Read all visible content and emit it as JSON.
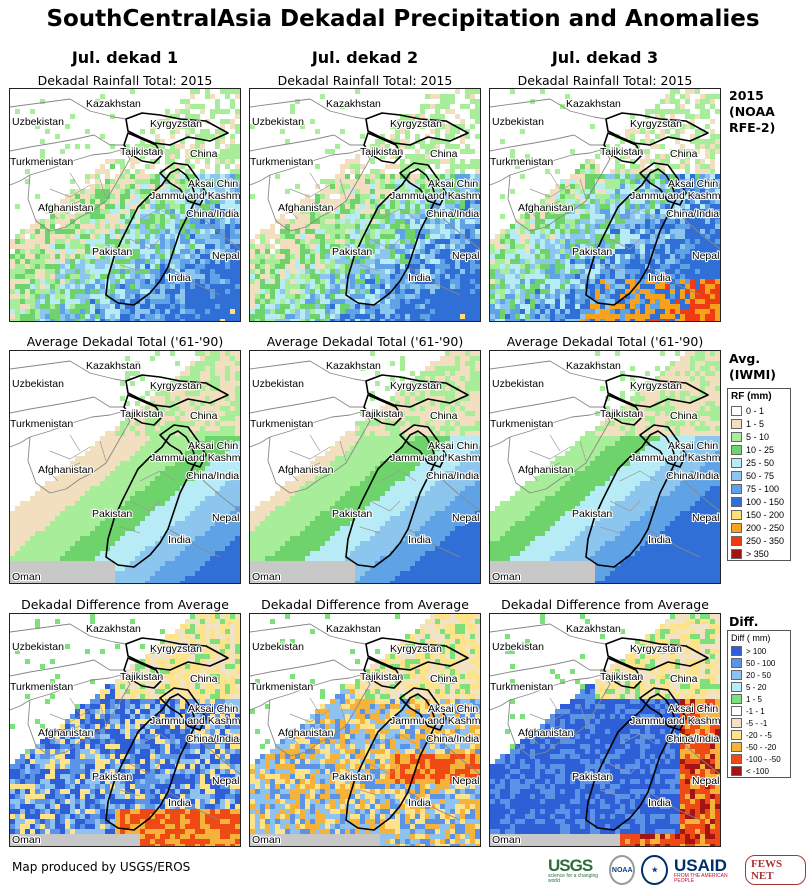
{
  "title": "SouthCentralAsia Dekadal Precipitation and Anomalies",
  "columns": [
    "Jul. dekad 1",
    "Jul. dekad 2",
    "Jul. dekad 3"
  ],
  "rows": [
    {
      "panel_title": "Dekadal Rainfall Total: 2015",
      "side_label": [
        "2015",
        "(NOAA",
        "RFE-2)"
      ],
      "kind": "total"
    },
    {
      "panel_title": "Average Dekadal Total ('61-'90)",
      "side_label": [
        "Avg.",
        "(IWMI)"
      ],
      "kind": "avg"
    },
    {
      "panel_title": "Dekadal Difference from Average",
      "side_label": [
        "Diff."
      ],
      "kind": "diff"
    }
  ],
  "map_labels": {
    "kazakhstan": "Kazakhstan",
    "uzbekistan": "Uzbekistan",
    "kyrgyzstan": "Kyrgyzstan",
    "tajikistan": "Tajikistan",
    "china": "China",
    "turkmenistan": "Turkmenistan",
    "aksai_chin": "Aksai Chin",
    "jammu_kashmir": "Jammu and Kashmir",
    "afghanistan": "Afghanistan",
    "china_india": "China/India",
    "pakistan": "Pakistan",
    "nepal": "Nepal",
    "india": "India",
    "oman": "Oman"
  },
  "rf_legend": {
    "header": "RF (mm)",
    "items": [
      {
        "label": "0 - 1",
        "color": "#ffffff"
      },
      {
        "label": "1 - 5",
        "color": "#f1dfc0"
      },
      {
        "label": "5 - 10",
        "color": "#a8ee9a"
      },
      {
        "label": "10 - 25",
        "color": "#6ed36a"
      },
      {
        "label": "25 - 50",
        "color": "#b7ecf7"
      },
      {
        "label": "50 - 75",
        "color": "#8cc6ee"
      },
      {
        "label": "75 - 100",
        "color": "#5fa2e6"
      },
      {
        "label": "100 - 150",
        "color": "#2f6fd6"
      },
      {
        "label": "150 - 200",
        "color": "#fde07b"
      },
      {
        "label": "200 - 250",
        "color": "#f7a21c"
      },
      {
        "label": "250 - 350",
        "color": "#ef3a12"
      },
      {
        "label": "> 350",
        "color": "#a31515"
      }
    ]
  },
  "diff_legend": {
    "header": "Diff ( mm)",
    "items": [
      {
        "label": "> 100",
        "color": "#2f5fd6"
      },
      {
        "label": "50 - 100",
        "color": "#5b93e6"
      },
      {
        "label": "20 - 50",
        "color": "#8ec2f0"
      },
      {
        "label": "5 - 20",
        "color": "#b8ecf6"
      },
      {
        "label": "1 - 5",
        "color": "#7ee07a"
      },
      {
        "label": "-1 - 1",
        "color": "#ffffff"
      },
      {
        "label": "-5 - -1",
        "color": "#f3e3c6"
      },
      {
        "label": "-20 - -5",
        "color": "#fde38a"
      },
      {
        "label": "-50 - -20",
        "color": "#f6b33a"
      },
      {
        "label": "-100 - -50",
        "color": "#ef4a16"
      },
      {
        "label": "< -100",
        "color": "#a31515"
      }
    ]
  },
  "footer": "Map produced by USGS/EROS",
  "logos": {
    "usgs": "USGS",
    "usgs_tagline": "science for a changing world",
    "noaa": "NOAA",
    "usaid": "USAID",
    "usaid_tagline": "FROM THE AMERICAN PEOPLE",
    "fews": "FEWS NET"
  }
}
